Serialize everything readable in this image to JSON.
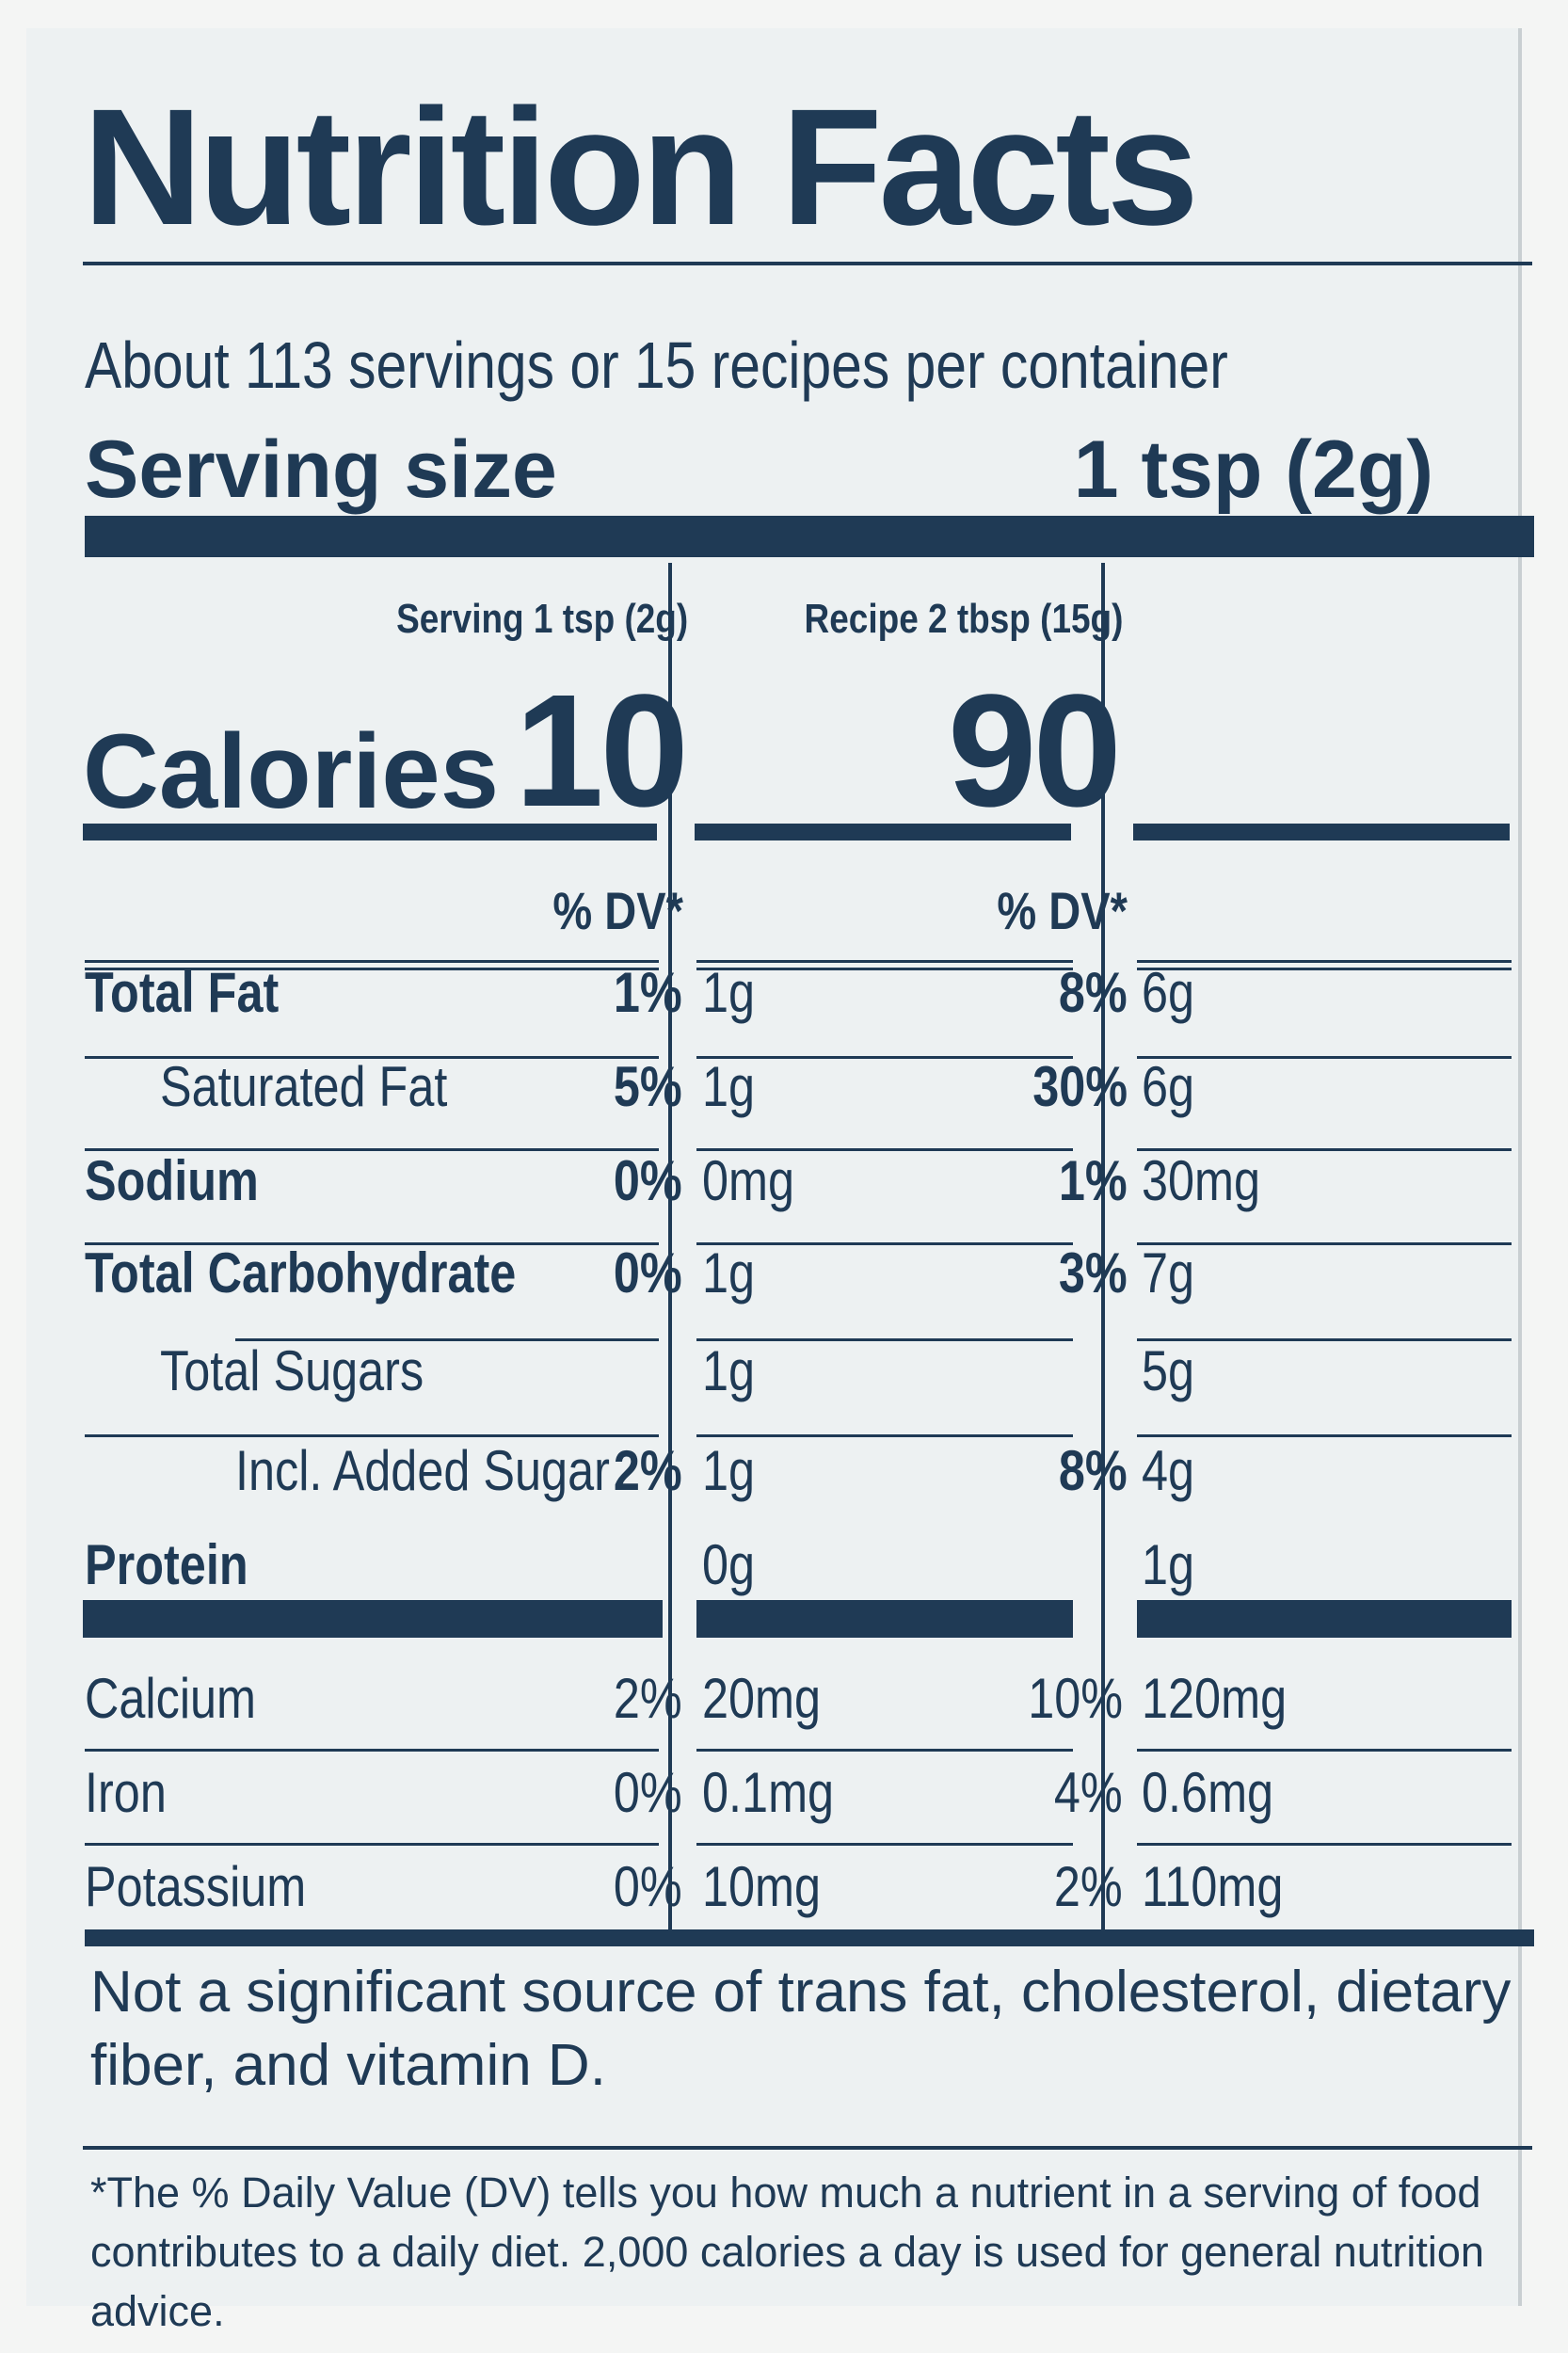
{
  "title": "Nutrition Facts",
  "servings_per_container": "About 113 servings or 15 recipes per container",
  "serving_size": {
    "label": "Serving size",
    "value": "1 tsp (2g)"
  },
  "columns": [
    {
      "header": "Serving 1 tsp (2g)",
      "calories": "10"
    },
    {
      "header": "Recipe 2 tbsp (15g)",
      "calories": "90"
    }
  ],
  "calories_label": "Calories",
  "dv_header": "% DV*",
  "nutrients": [
    {
      "name": "Total Fat",
      "bold": true,
      "indent": 0,
      "serving": [
        "1g",
        "1%"
      ],
      "recipe": [
        "6g",
        "8%"
      ]
    },
    {
      "name": "Saturated Fat",
      "bold": false,
      "indent": 1,
      "serving": [
        "1g",
        "5%"
      ],
      "recipe": [
        "6g",
        "30%"
      ]
    },
    {
      "name": "Sodium",
      "bold": true,
      "indent": 0,
      "serving": [
        "0mg",
        "0%"
      ],
      "recipe": [
        "30mg",
        "1%"
      ]
    },
    {
      "name": "Total Carbohydrate",
      "bold": true,
      "indent": 0,
      "serving": [
        "1g",
        "0%"
      ],
      "recipe": [
        "7g",
        "3%"
      ]
    },
    {
      "name": "Total Sugars",
      "bold": false,
      "indent": 1,
      "serving": [
        "1g",
        ""
      ],
      "recipe": [
        "5g",
        ""
      ]
    },
    {
      "name": "Incl. Added Sugar",
      "bold": false,
      "indent": 2,
      "serving": [
        "1g",
        "2%"
      ],
      "recipe": [
        "4g",
        "8%"
      ]
    },
    {
      "name": "Protein",
      "bold": true,
      "indent": 0,
      "serving": [
        "0g",
        ""
      ],
      "recipe": [
        "1g",
        ""
      ]
    }
  ],
  "vitamins": [
    {
      "name": "Calcium",
      "serving": [
        "20mg",
        "2%"
      ],
      "recipe": [
        "120mg",
        "10%"
      ]
    },
    {
      "name": "Iron",
      "serving": [
        "0.1mg",
        "0%"
      ],
      "recipe": [
        "0.6mg",
        "4%"
      ]
    },
    {
      "name": "Potassium",
      "serving": [
        "10mg",
        "0%"
      ],
      "recipe": [
        "110mg",
        "2%"
      ]
    }
  ],
  "footnote_insignificant": "Not a significant source of trans fat, cholesterol, dietary fiber, and vitamin D.",
  "footnote_dv": "*The % Daily Value (DV) tells you how much a nutrient in a serving of food contributes to a daily diet. 2,000 calories a day is used for general nutrition advice.",
  "colors": {
    "ink": "#1f3a55",
    "background": "#edf1f2"
  }
}
